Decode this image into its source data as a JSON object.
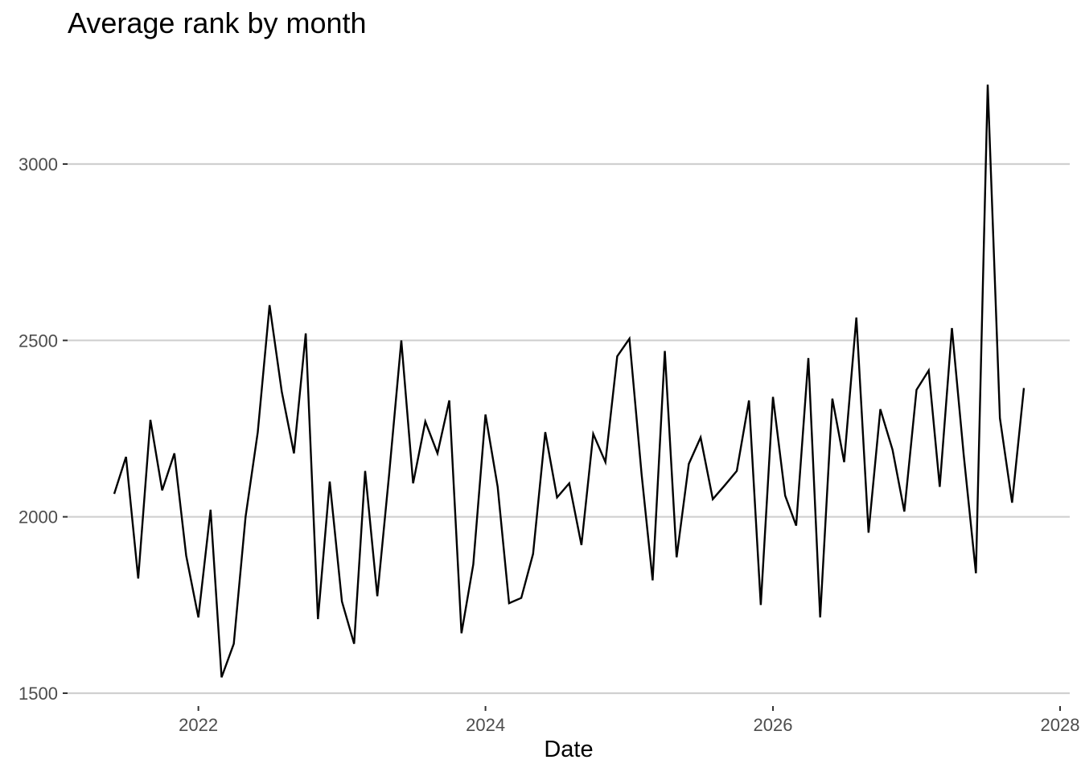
{
  "chart_data": {
    "type": "line",
    "title": "Average rank by month",
    "xlabel": "Date",
    "ylabel": "",
    "ylim": [
      1500,
      3250
    ],
    "xlim": [
      "2021-03-01",
      "2028-02-01"
    ],
    "y_ticks": [
      1500,
      2000,
      2500,
      3000
    ],
    "x_ticks": [
      {
        "date": "2022-01-01",
        "label": "2022"
      },
      {
        "date": "2024-01-01",
        "label": "2024"
      },
      {
        "date": "2026-01-01",
        "label": "2026"
      },
      {
        "date": "2028-01-01",
        "label": "2028"
      }
    ],
    "grid": "horizontal major",
    "legend": "none",
    "line_color": "#000000",
    "grid_color": "#d0d0d0",
    "series": [
      {
        "x": [
          "2021-06",
          "2021-07",
          "2021-08",
          "2021-09",
          "2021-10",
          "2021-11",
          "2021-12",
          "2022-01",
          "2022-02",
          "2022-03",
          "2022-04",
          "2022-05",
          "2022-06",
          "2022-07",
          "2022-08",
          "2022-09",
          "2022-10",
          "2022-11",
          "2022-12",
          "2023-01",
          "2023-02",
          "2023-03",
          "2023-04",
          "2023-05",
          "2023-06",
          "2023-07",
          "2023-08",
          "2023-09",
          "2023-10",
          "2023-11",
          "2023-12",
          "2024-01",
          "2024-02",
          "2024-03",
          "2024-04",
          "2024-05",
          "2024-06",
          "2024-07",
          "2024-08",
          "2024-09",
          "2024-10",
          "2024-11",
          "2024-12",
          "2025-01",
          "2025-02",
          "2025-03",
          "2025-04",
          "2025-05",
          "2025-06",
          "2025-07",
          "2025-08",
          "2025-09",
          "2025-10",
          "2025-11",
          "2025-12",
          "2026-01",
          "2026-02",
          "2026-03",
          "2026-04",
          "2026-05",
          "2026-06",
          "2026-07",
          "2026-08",
          "2026-09",
          "2026-10",
          "2026-11",
          "2026-12",
          "2027-01",
          "2027-02",
          "2027-03",
          "2027-04",
          "2027-05",
          "2027-06",
          "2027-07",
          "2027-08",
          "2027-09",
          "2027-10"
        ],
        "values": [
          2065,
          2170,
          1825,
          2275,
          2075,
          2180,
          1890,
          1715,
          2020,
          1545,
          1640,
          2000,
          2240,
          2600,
          2355,
          2180,
          2520,
          1710,
          2100,
          1760,
          1640,
          2130,
          1775,
          2120,
          2500,
          2095,
          2270,
          2180,
          2330,
          1670,
          1865,
          2290,
          2085,
          1755,
          1770,
          1895,
          2240,
          2055,
          2095,
          1920,
          2235,
          2155,
          2455,
          2505,
          2120,
          1820,
          2470,
          1885,
          2150,
          2225,
          2050,
          2090,
          2130,
          2330,
          1750,
          2340,
          2060,
          1975,
          2450,
          1715,
          2335,
          2155,
          2565,
          1955,
          2305,
          2190,
          2015,
          2360,
          2415,
          2085,
          2535,
          2175,
          1840,
          3225,
          2280,
          2040,
          2365
        ]
      }
    ]
  }
}
